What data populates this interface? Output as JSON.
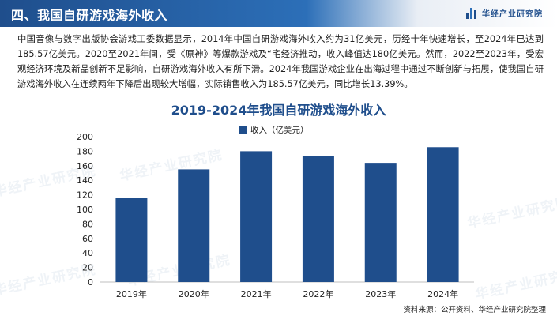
{
  "header": {
    "title": "四、我国自研游戏海外收入",
    "brand": "华经产业研究院"
  },
  "body_text": "中国音像与数字出版协会游戏工委数据显示，2014年中国自研游戏海外收入约为31亿美元，历经十年快速增长，至2024年已达到185.57亿美元。2020至2021年间，受《原神》等爆款游戏及“宅经济推动，收入峰值达180亿美元。然而，2022至2023年，受宏观经济环境及新品创新不足影响，自研游戏海外收入有所下滑。2024年我国游戏企业在出海过程中通过不断创新与拓展，使我国自研游戏海外收入在连续两年下降后出现较大增幅，实际销售收入为185.57亿美元，同比增长13.39%。",
  "watermark": "华经产业研究院",
  "source": "资料来源：公开资料、华经产业研究院整理",
  "colors": {
    "bar": "#1f4e8c",
    "title": "#1f4e8c",
    "header": "#1f4e8c"
  },
  "chart_data": {
    "type": "bar",
    "title": "2019-2024年我国自研游戏海外收入",
    "categories": [
      "2019年",
      "2020年",
      "2021年",
      "2022年",
      "2023年",
      "2024年"
    ],
    "series": [
      {
        "name": "收入（亿美元）",
        "values": [
          116,
          155,
          180,
          173,
          164,
          185.57
        ]
      }
    ],
    "ylim": [
      0,
      200
    ],
    "yticks": [
      0,
      20,
      40,
      60,
      80,
      100,
      120,
      140,
      160,
      180,
      200
    ],
    "grid": false,
    "legend": "top-center"
  }
}
